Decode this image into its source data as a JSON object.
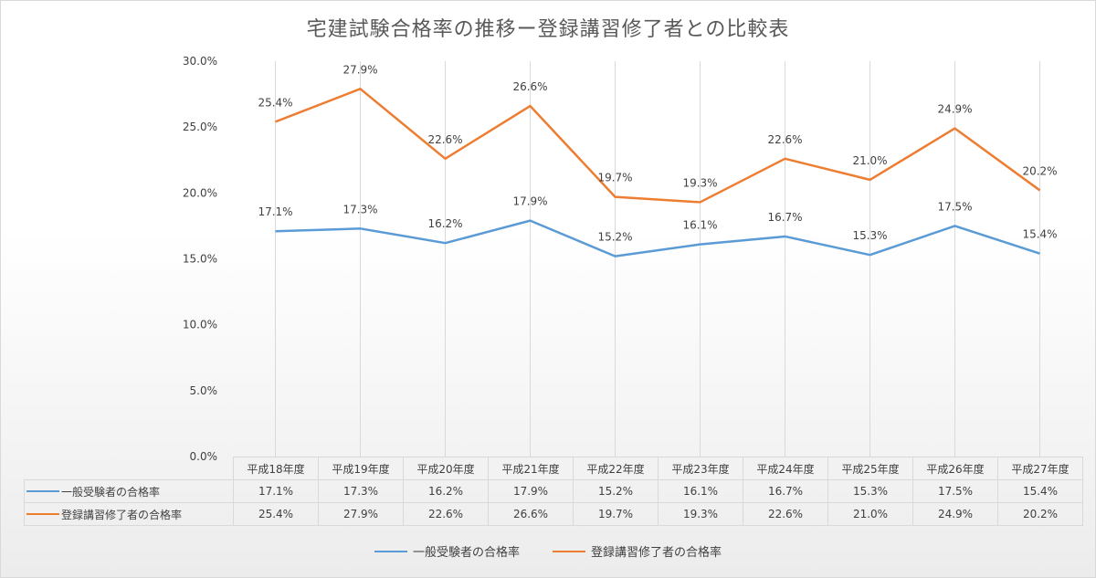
{
  "chart_data": {
    "type": "line",
    "title": "宅建試験合格率の推移ー登録講習修了者との比較表",
    "categories": [
      "平成18年度",
      "平成19年度",
      "平成20年度",
      "平成21年度",
      "平成22年度",
      "平成23年度",
      "平成24年度",
      "平成25年度",
      "平成26年度",
      "平成27年度"
    ],
    "y_ticks": [
      "0.0%",
      "5.0%",
      "10.0%",
      "15.0%",
      "20.0%",
      "25.0%",
      "30.0%"
    ],
    "ylim": [
      0,
      30
    ],
    "grid": "vertical",
    "legend_position": "bottom",
    "series": [
      {
        "name": "一般受験者の合格率",
        "color": "#5b9bd5",
        "values": [
          17.1,
          17.3,
          16.2,
          17.9,
          15.2,
          16.1,
          16.7,
          15.3,
          17.5,
          15.4
        ],
        "labels": [
          "17.1%",
          "17.3%",
          "16.2%",
          "17.9%",
          "15.2%",
          "16.1%",
          "16.7%",
          "15.3%",
          "17.5%",
          "15.4%"
        ]
      },
      {
        "name": "登録講習修了者の合格率",
        "color": "#ed7d31",
        "values": [
          25.4,
          27.9,
          22.6,
          26.6,
          19.7,
          19.3,
          22.6,
          21.0,
          24.9,
          20.2
        ],
        "labels": [
          "25.4%",
          "27.9%",
          "22.6%",
          "26.6%",
          "19.7%",
          "19.3%",
          "22.6%",
          "21.0%",
          "24.9%",
          "20.2%"
        ]
      }
    ]
  }
}
